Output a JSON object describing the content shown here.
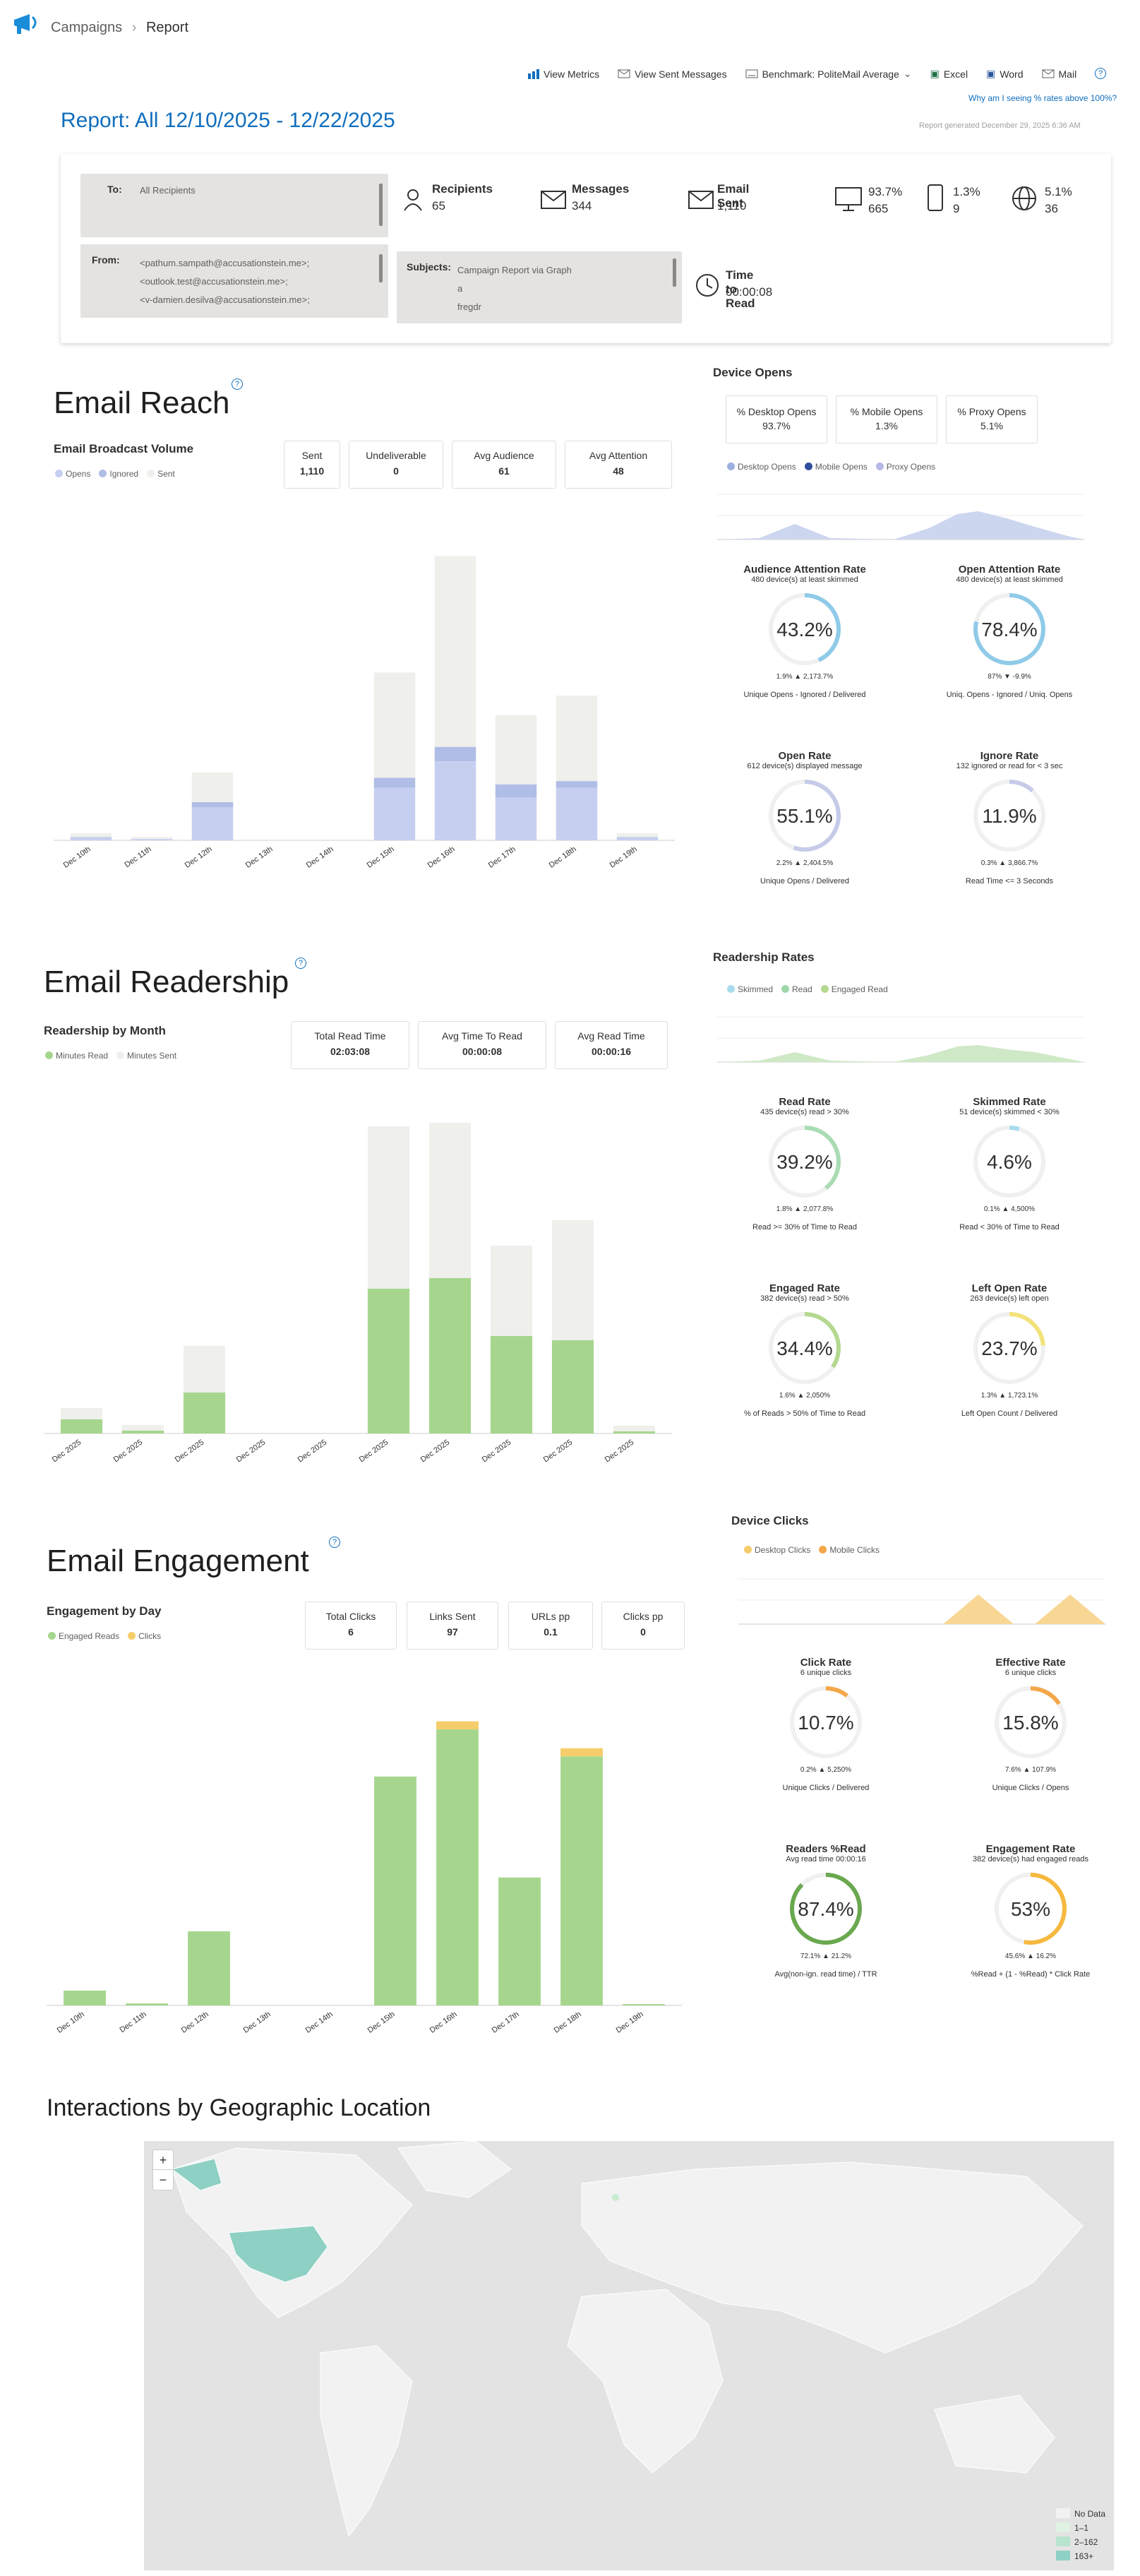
{
  "breadcrumb": {
    "root": "Campaigns",
    "sep": "›",
    "current": "Report"
  },
  "toolbar": {
    "view_metrics": "View Metrics",
    "view_sent": "View Sent Messages",
    "benchmark": "Benchmark: PoliteMail Average",
    "excel": "Excel",
    "word": "Word",
    "mail": "Mail",
    "why": "Why am I seeing % rates above 100%?"
  },
  "report": {
    "title": "Report: All 12/10/2025 - 12/22/2025",
    "generated": "Report generated December 29, 2025 6:36 AM"
  },
  "summary": {
    "to_label": "To:",
    "to_value": "All Recipients",
    "from_label": "From:",
    "from_values": [
      "<pathum.sampath@accusationstein.me>;",
      "<outlook.test@accusationstein.me>;",
      "<v-damien.desilva@accusationstein.me>;"
    ],
    "subjects_label": "Subjects:",
    "subjects": [
      "Campaign Report via Graph",
      "a",
      "fregdr"
    ],
    "recipients_label": "Recipients",
    "recipients": "65",
    "messages_label": "Messages",
    "messages": "344",
    "sent_label": "Email Sent",
    "sent": "1,110",
    "desktop_pct": "93.7%",
    "desktop_n": "665",
    "mobile_pct": "1.3%",
    "mobile_n": "9",
    "proxy_pct": "5.1%",
    "proxy_n": "36",
    "ttr_label": "Time to Read",
    "ttr": "00:00:08"
  },
  "reach": {
    "title": "Email Reach",
    "chart_title": "Email Broadcast Volume",
    "legend": [
      "Opens",
      "Ignored",
      "Sent"
    ],
    "kpis": [
      {
        "label": "Sent",
        "value": "1,110"
      },
      {
        "label": "Undeliverable",
        "value": "0"
      },
      {
        "label": "Avg Audience",
        "value": "61"
      },
      {
        "label": "Avg Attention",
        "value": "48"
      }
    ]
  },
  "device_opens": {
    "title": "Device Opens",
    "boxes": [
      {
        "label": "% Desktop Opens",
        "value": "93.7%"
      },
      {
        "label": "% Mobile Opens",
        "value": "1.3%"
      },
      {
        "label": "% Proxy Opens",
        "value": "5.1%"
      }
    ],
    "legend": [
      "Desktop Opens",
      "Mobile Opens",
      "Proxy Opens"
    ]
  },
  "reach_gauges": [
    {
      "title": "Audience Attention Rate",
      "sub": "480 device(s) at least skimmed",
      "value": "43.2%",
      "delta": "1.9% ▲ 2,173.7%",
      "foot": "Unique Opens - Ignored / Delivered"
    },
    {
      "title": "Open Attention Rate",
      "sub": "480 device(s) at least skimmed",
      "value": "78.4%",
      "delta": "87% ▼ -9.9%",
      "foot": "Uniq. Opens - Ignored / Uniq. Opens"
    },
    {
      "title": "Open Rate",
      "sub": "612 device(s) displayed message",
      "value": "55.1%",
      "delta": "2.2% ▲ 2,404.5%",
      "foot": "Unique Opens / Delivered"
    },
    {
      "title": "Ignore Rate",
      "sub": "132 ignored or read for < 3 sec",
      "value": "11.9%",
      "delta": "0.3% ▲ 3,866.7%",
      "foot": "Read Time <= 3 Seconds"
    }
  ],
  "readership": {
    "title": "Email Readership",
    "chart_title": "Readership by Month",
    "legend": [
      "Minutes Read",
      "Minutes Sent"
    ],
    "kpis": [
      {
        "label": "Total Read Time",
        "value": "02:03:08"
      },
      {
        "label": "Avg Time To Read",
        "value": "00:00:08"
      },
      {
        "label": "Avg Read Time",
        "value": "00:00:16"
      }
    ]
  },
  "readership_rates": {
    "title": "Readership Rates",
    "legend": [
      "Skimmed",
      "Read",
      "Engaged Read"
    ]
  },
  "read_gauges": [
    {
      "title": "Read Rate",
      "sub": "435 device(s) read > 30%",
      "value": "39.2%",
      "delta": "1.8% ▲ 2,077.8%",
      "foot": "Read >= 30% of Time to Read"
    },
    {
      "title": "Skimmed Rate",
      "sub": "51 device(s) skimmed < 30%",
      "value": "4.6%",
      "delta": "0.1% ▲ 4,500%",
      "foot": "Read < 30% of Time to Read"
    },
    {
      "title": "Engaged Rate",
      "sub": "382 device(s) read > 50%",
      "value": "34.4%",
      "delta": "1.6% ▲ 2,050%",
      "foot": "% of Reads > 50% of Time to Read"
    },
    {
      "title": "Left Open Rate",
      "sub": "263 device(s) left open",
      "value": "23.7%",
      "delta": "1.3% ▲ 1,723.1%",
      "foot": "Left Open Count / Delivered"
    }
  ],
  "engagement": {
    "title": "Email Engagement",
    "chart_title": "Engagement by Day",
    "legend": [
      "Engaged Reads",
      "Clicks"
    ],
    "kpis": [
      {
        "label": "Total Clicks",
        "value": "6"
      },
      {
        "label": "Links Sent",
        "value": "97"
      },
      {
        "label": "URLs pp",
        "value": "0.1"
      },
      {
        "label": "Clicks pp",
        "value": "0"
      }
    ]
  },
  "device_clicks": {
    "title": "Device Clicks",
    "legend": [
      "Desktop Clicks",
      "Mobile Clicks"
    ]
  },
  "click_gauges": [
    {
      "title": "Click Rate",
      "sub": "6 unique clicks",
      "value": "10.7%",
      "delta": "0.2% ▲ 5,250%",
      "foot": "Unique Clicks / Delivered"
    },
    {
      "title": "Effective Rate",
      "sub": "6 unique clicks",
      "value": "15.8%",
      "delta": "7.6% ▲ 107.9%",
      "foot": "Unique Clicks / Opens"
    },
    {
      "title": "Readers %Read",
      "sub": "Avg read time 00:00:16",
      "value": "87.4%",
      "delta": "72.1% ▲ 21.2%",
      "foot": "Avg(non-ign. read time) / TTR"
    },
    {
      "title": "Engagement Rate",
      "sub": "382 device(s) had engaged reads",
      "value": "53%",
      "delta": "45.6% ▲ 16.2%",
      "foot": "%Read + (1 - %Read) * Click Rate"
    }
  ],
  "geo": {
    "title": "Interactions by Geographic Location",
    "zoom_in": "+",
    "zoom_out": "−",
    "legend": [
      "No Data",
      "1–1",
      "2–162",
      "163+"
    ]
  },
  "chart_data": [
    {
      "type": "bar",
      "title": "Email Broadcast Volume",
      "categories": [
        "Dec 10th",
        "Dec 11th",
        "Dec 12th",
        "Dec 13th",
        "Dec 14th",
        "Dec 15th",
        "Dec 16th",
        "Dec 17th",
        "Dec 18th",
        "Dec 19th"
      ],
      "series": [
        {
          "name": "Opens",
          "values": [
            4,
            2,
            50,
            0,
            0,
            80,
            120,
            65,
            80,
            4
          ]
        },
        {
          "name": "Ignored",
          "values": [
            1,
            0,
            8,
            0,
            0,
            15,
            22,
            20,
            10,
            1
          ]
        },
        {
          "name": "Sent",
          "values": [
            6,
            3,
            45,
            0,
            0,
            160,
            290,
            105,
            130,
            6
          ]
        }
      ],
      "ylim": [
        0,
        440
      ]
    },
    {
      "type": "bar",
      "title": "Readership by Month",
      "categories": [
        "Dec 2025",
        "Dec 2025",
        "Dec 2025",
        "Dec 2025",
        "Dec 2025",
        "Dec 2025",
        "Dec 2025",
        "Dec 2025",
        "Dec 2025",
        "Dec 2025"
      ],
      "series": [
        {
          "name": "Minutes Read",
          "values": [
            20,
            4,
            58,
            0,
            0,
            205,
            220,
            138,
            132,
            3
          ]
        },
        {
          "name": "Minutes Sent",
          "values": [
            16,
            8,
            66,
            0,
            0,
            230,
            220,
            128,
            170,
            8
          ]
        }
      ],
      "ylim": [
        0,
        460
      ]
    },
    {
      "type": "bar",
      "title": "Engagement by Day",
      "categories": [
        "Dec 10th",
        "Dec 11th",
        "Dec 12th",
        "Dec 13th",
        "Dec 14th",
        "Dec 15th",
        "Dec 16th",
        "Dec 17th",
        "Dec 18th",
        "Dec 19th"
      ],
      "series": [
        {
          "name": "Engaged Reads",
          "values": [
            22,
            3,
            110,
            0,
            0,
            340,
            410,
            190,
            370,
            2
          ]
        },
        {
          "name": "Clicks",
          "values": [
            0,
            0,
            0,
            0,
            0,
            0,
            12,
            0,
            12,
            0
          ]
        }
      ],
      "ylim": [
        0,
        430
      ]
    }
  ],
  "colors": {
    "blue": "#106ebe",
    "opens": "#c7cff0",
    "ignored": "#b0bde6",
    "sent": "#efefec",
    "green": "#a6d68e",
    "clicks": "#f6cd6b",
    "orange": "#f4a74a",
    "skim": "#a8dced"
  }
}
